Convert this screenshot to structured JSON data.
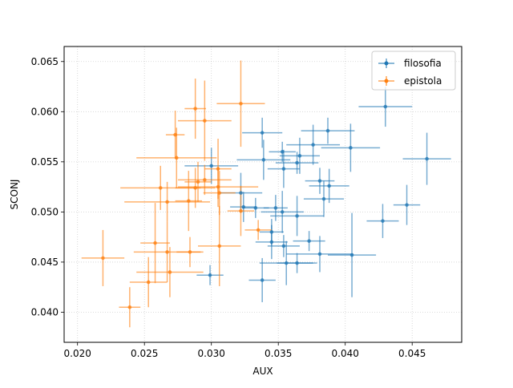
{
  "chart_data": {
    "type": "scatter",
    "title": "",
    "xlabel": "AUX",
    "ylabel": "SCONJ",
    "xlim": [
      0.019,
      0.0487
    ],
    "ylim": [
      0.037,
      0.0665
    ],
    "x_ticks": [
      "0.020",
      "0.025",
      "0.030",
      "0.035",
      "0.040",
      "0.045"
    ],
    "y_ticks": [
      "0.040",
      "0.045",
      "0.050",
      "0.055",
      "0.060",
      "0.065"
    ],
    "grid": true,
    "legend_position": "upper right",
    "series": [
      {
        "name": "filosofia",
        "color": "#1f77b4",
        "points": [
          {
            "x": 0.043,
            "y": 0.0605,
            "xerr": 0.002,
            "yerr": 0.002
          },
          {
            "x": 0.0461,
            "y": 0.0553,
            "xerr": 0.0018,
            "yerr": 0.0026
          },
          {
            "x": 0.0446,
            "y": 0.0507,
            "xerr": 0.001,
            "yerr": 0.002
          },
          {
            "x": 0.0428,
            "y": 0.0491,
            "xerr": 0.0012,
            "yerr": 0.0017
          },
          {
            "x": 0.0405,
            "y": 0.0457,
            "xerr": 0.0018,
            "yerr": 0.0042
          },
          {
            "x": 0.0404,
            "y": 0.0564,
            "xerr": 0.0022,
            "yerr": 0.0024
          },
          {
            "x": 0.0387,
            "y": 0.0581,
            "xerr": 0.002,
            "yerr": 0.0013
          },
          {
            "x": 0.0388,
            "y": 0.0526,
            "xerr": 0.0015,
            "yerr": 0.0017
          },
          {
            "x": 0.0384,
            "y": 0.0513,
            "xerr": 0.0015,
            "yerr": 0.0018
          },
          {
            "x": 0.0381,
            "y": 0.0531,
            "xerr": 0.0011,
            "yerr": 0.0013
          },
          {
            "x": 0.0376,
            "y": 0.0567,
            "xerr": 0.002,
            "yerr": 0.002
          },
          {
            "x": 0.0381,
            "y": 0.0458,
            "xerr": 0.0025,
            "yerr": 0.0018
          },
          {
            "x": 0.0373,
            "y": 0.0471,
            "xerr": 0.0012,
            "yerr": 0.001
          },
          {
            "x": 0.0366,
            "y": 0.0556,
            "xerr": 0.0015,
            "yerr": 0.0018
          },
          {
            "x": 0.0364,
            "y": 0.0549,
            "xerr": 0.0016,
            "yerr": 0.0011
          },
          {
            "x": 0.0364,
            "y": 0.0496,
            "xerr": 0.002,
            "yerr": 0.002
          },
          {
            "x": 0.0364,
            "y": 0.0449,
            "xerr": 0.0015,
            "yerr": 0.001
          },
          {
            "x": 0.0356,
            "y": 0.0449,
            "xerr": 0.002,
            "yerr": 0.0022
          },
          {
            "x": 0.0353,
            "y": 0.056,
            "xerr": 0.001,
            "yerr": 0.001
          },
          {
            "x": 0.0354,
            "y": 0.0543,
            "xerr": 0.0012,
            "yerr": 0.0019
          },
          {
            "x": 0.0353,
            "y": 0.05,
            "xerr": 0.0016,
            "yerr": 0.0021
          },
          {
            "x": 0.0354,
            "y": 0.0466,
            "xerr": 0.0012,
            "yerr": 0.0011
          },
          {
            "x": 0.0348,
            "y": 0.0504,
            "xerr": 0.0009,
            "yerr": 0.0013
          },
          {
            "x": 0.0345,
            "y": 0.048,
            "xerr": 0.0009,
            "yerr": 0.0013
          },
          {
            "x": 0.0345,
            "y": 0.047,
            "xerr": 0.0012,
            "yerr": 0.0017
          },
          {
            "x": 0.0339,
            "y": 0.0552,
            "xerr": 0.002,
            "yerr": 0.002
          },
          {
            "x": 0.0338,
            "y": 0.0579,
            "xerr": 0.0015,
            "yerr": 0.0015
          },
          {
            "x": 0.0338,
            "y": 0.0432,
            "xerr": 0.001,
            "yerr": 0.0022
          },
          {
            "x": 0.0333,
            "y": 0.0504,
            "xerr": 0.001,
            "yerr": 0.001
          },
          {
            "x": 0.0324,
            "y": 0.0505,
            "xerr": 0.001,
            "yerr": 0.0015
          },
          {
            "x": 0.0322,
            "y": 0.0519,
            "xerr": 0.0016,
            "yerr": 0.002
          },
          {
            "x": 0.03,
            "y": 0.0546,
            "xerr": 0.002,
            "yerr": 0.0018
          },
          {
            "x": 0.0299,
            "y": 0.0437,
            "xerr": 0.001,
            "yerr": 0.001
          }
        ]
      },
      {
        "name": "epistola",
        "color": "#ff7f0e",
        "points": [
          {
            "x": 0.0322,
            "y": 0.0608,
            "xerr": 0.0018,
            "yerr": 0.0043
          },
          {
            "x": 0.0288,
            "y": 0.0603,
            "xerr": 0.0008,
            "yerr": 0.003
          },
          {
            "x": 0.0295,
            "y": 0.0591,
            "xerr": 0.002,
            "yerr": 0.004
          },
          {
            "x": 0.0273,
            "y": 0.0577,
            "xerr": 0.0007,
            "yerr": 0.0024
          },
          {
            "x": 0.0274,
            "y": 0.0554,
            "xerr": 0.003,
            "yerr": 0.003
          },
          {
            "x": 0.0305,
            "y": 0.0543,
            "xerr": 0.001,
            "yerr": 0.003
          },
          {
            "x": 0.0295,
            "y": 0.0532,
            "xerr": 0.002,
            "yerr": 0.0015
          },
          {
            "x": 0.029,
            "y": 0.053,
            "xerr": 0.001,
            "yerr": 0.002
          },
          {
            "x": 0.0305,
            "y": 0.0525,
            "xerr": 0.003,
            "yerr": 0.002
          },
          {
            "x": 0.0288,
            "y": 0.0524,
            "xerr": 0.0015,
            "yerr": 0.002
          },
          {
            "x": 0.0262,
            "y": 0.0524,
            "xerr": 0.003,
            "yerr": 0.0022
          },
          {
            "x": 0.0306,
            "y": 0.0519,
            "xerr": 0.0012,
            "yerr": 0.0022
          },
          {
            "x": 0.0283,
            "y": 0.0511,
            "xerr": 0.001,
            "yerr": 0.003
          },
          {
            "x": 0.0267,
            "y": 0.051,
            "xerr": 0.0032,
            "yerr": 0.002
          },
          {
            "x": 0.0322,
            "y": 0.0501,
            "xerr": 0.001,
            "yerr": 0.0025
          },
          {
            "x": 0.0335,
            "y": 0.0482,
            "xerr": 0.001,
            "yerr": 0.001
          },
          {
            "x": 0.0258,
            "y": 0.0469,
            "xerr": 0.0011,
            "yerr": 0.004
          },
          {
            "x": 0.0306,
            "y": 0.0466,
            "xerr": 0.0016,
            "yerr": 0.004
          },
          {
            "x": 0.0267,
            "y": 0.046,
            "xerr": 0.0025,
            "yerr": 0.003
          },
          {
            "x": 0.0284,
            "y": 0.046,
            "xerr": 0.001,
            "yerr": 0.0015
          },
          {
            "x": 0.0269,
            "y": 0.044,
            "xerr": 0.0025,
            "yerr": 0.0025
          },
          {
            "x": 0.0219,
            "y": 0.0454,
            "xerr": 0.0016,
            "yerr": 0.0028
          },
          {
            "x": 0.0253,
            "y": 0.043,
            "xerr": 0.0014,
            "yerr": 0.0025
          },
          {
            "x": 0.0239,
            "y": 0.0405,
            "xerr": 0.0008,
            "yerr": 0.002
          }
        ]
      }
    ]
  }
}
